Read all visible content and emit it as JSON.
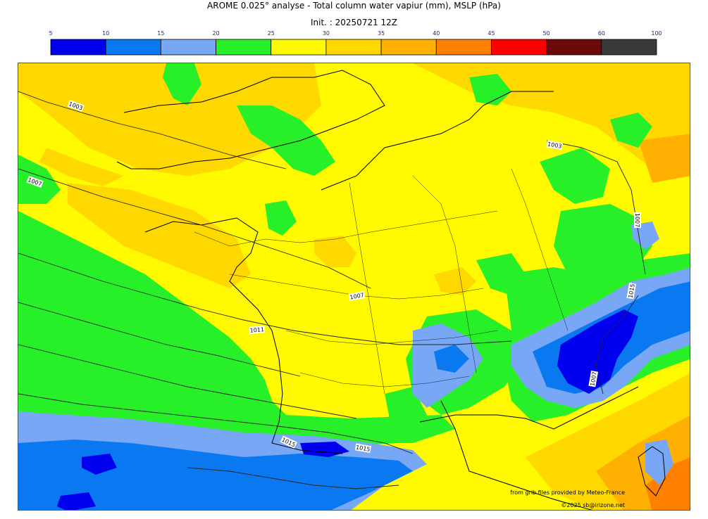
{
  "title_line1": "AROME 0.025° analyse - Total column water vapiur (mm), MSLP (hPa)",
  "title_line2": "Init. : 20250721 12Z",
  "legend": {
    "ticks": [
      "5",
      "10",
      "15",
      "20",
      "25",
      "30",
      "35",
      "40",
      "45",
      "50",
      "60",
      "100"
    ],
    "colors": [
      "#0000ee",
      "#0a78f0",
      "#78a8f5",
      "#28f028",
      "#fffa00",
      "#ffd800",
      "#ffb000",
      "#ff8000",
      "#ff0000",
      "#6a0a0a",
      "#3a3a3a"
    ]
  },
  "isobar_labels": [
    "1003",
    "1003",
    "1007",
    "1007",
    "1007",
    "1011",
    "1015",
    "1015",
    "1007",
    "1015"
  ],
  "credit_source": "from grib files provided by Meteo-France",
  "credit_copyright": "©2025 sb@irizone.net"
}
